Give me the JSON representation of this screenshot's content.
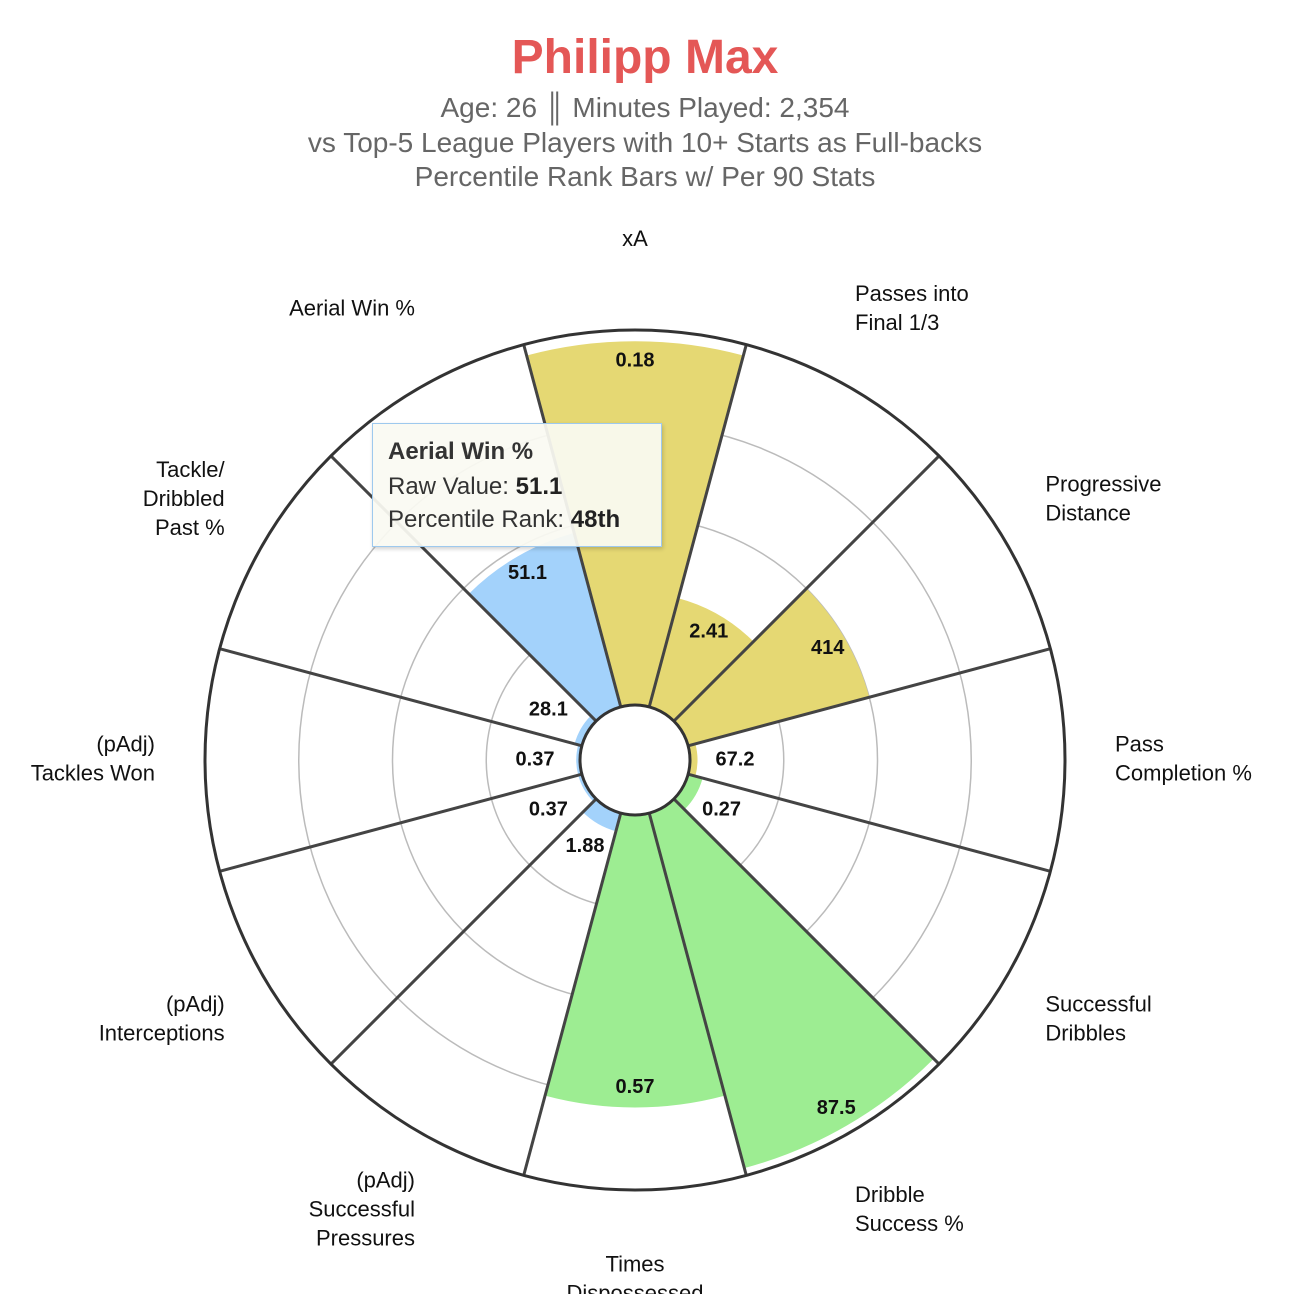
{
  "header": {
    "title": "Philipp Max",
    "subtitle_line1": "Age: 26 ║ Minutes Played: 2,354",
    "subtitle_line2": "vs Top-5 League Players with 10+ Starts as Full-backs",
    "subtitle_line3": "Percentile Rank Bars w/ Per 90 Stats"
  },
  "colors": {
    "title": "#e45756",
    "subtitle": "#666666",
    "attacking": "#e5d873",
    "possession": "#9ded92",
    "defending": "#a3d2fb",
    "axis_line": "#444444",
    "grid_circle": "#bbbbbb",
    "outer_ring": "#333333"
  },
  "tooltip": {
    "title": "Aerial Win %",
    "raw_label": "Raw Value:",
    "raw_value": "51.1",
    "pct_label": "Percentile Rank:",
    "pct_value": "48th"
  },
  "chart_data": {
    "type": "polar_bar",
    "title": "Philipp Max",
    "rlim": [
      0,
      100
    ],
    "categories": [
      {
        "label": "xA",
        "raw": "0.18",
        "percentile": 97,
        "group": "attacking"
      },
      {
        "label": "Passes into Final 1/3",
        "raw": "2.41",
        "percentile": 30,
        "group": "attacking"
      },
      {
        "label": "Progressive Distance",
        "raw": "414",
        "percentile": 50,
        "group": "attacking"
      },
      {
        "label": "Pass Completion %",
        "raw": "67.2",
        "percentile": 2,
        "group": "attacking"
      },
      {
        "label": "Successful Dribbles",
        "raw": "0.27",
        "percentile": 4,
        "group": "possession"
      },
      {
        "label": "Dribble Success %",
        "raw": "87.5",
        "percentile": 98,
        "group": "possession"
      },
      {
        "label": "Times Dispossessed",
        "raw": "0.57",
        "percentile": 78,
        "group": "possession"
      },
      {
        "label": "(pAdj) Successful Pressures",
        "raw": "1.88",
        "percentile": 5,
        "group": "defending"
      },
      {
        "label": "(pAdj) Interceptions",
        "raw": "0.37",
        "percentile": 1,
        "group": "defending"
      },
      {
        "label": "(pAdj) Tackles Won",
        "raw": "0.37",
        "percentile": 1,
        "group": "defending"
      },
      {
        "label": "Tackle/ Dribbled Past %",
        "raw": "28.1",
        "percentile": 2,
        "group": "defending"
      },
      {
        "label": "Aerial Win %",
        "raw": "51.1",
        "percentile": 48,
        "group": "defending"
      }
    ]
  }
}
